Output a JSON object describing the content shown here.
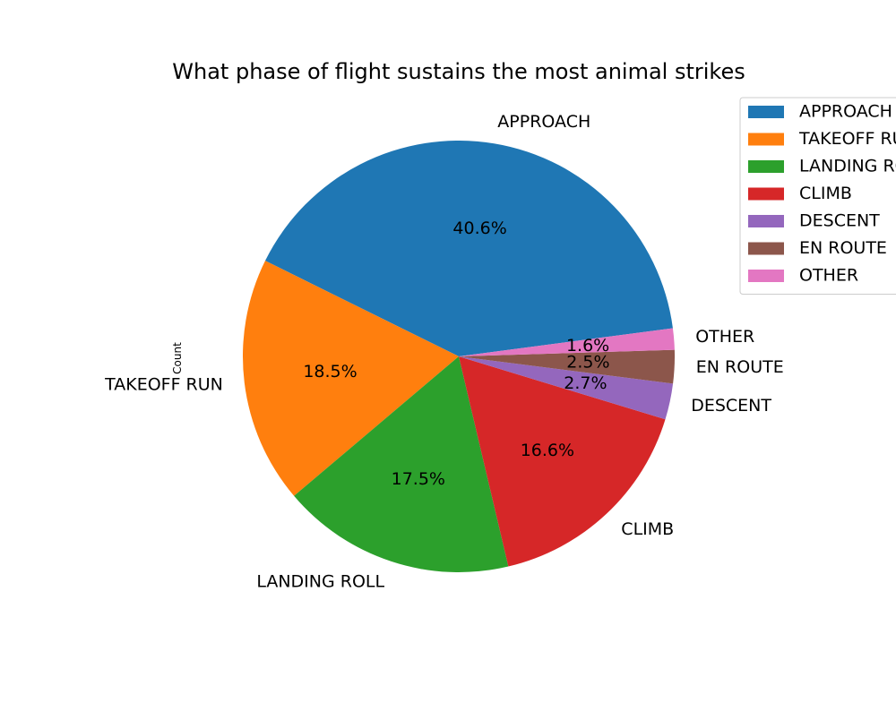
{
  "chart_data": {
    "type": "pie",
    "title": "What phase of flight sustains the most animal strikes",
    "ylabel": "Count",
    "categories": [
      "APPROACH",
      "TAKEOFF RUN",
      "LANDING ROLL",
      "CLIMB",
      "DESCENT",
      "EN ROUTE",
      "OTHER"
    ],
    "percentages": [
      40.6,
      18.5,
      17.5,
      16.6,
      2.7,
      2.5,
      1.6
    ],
    "percent_labels": [
      "40.6%",
      "18.5%",
      "17.5%",
      "16.6%",
      "2.7%",
      "2.5%",
      "1.6%"
    ],
    "colors": [
      "#1f77b4",
      "#ff7f0e",
      "#2ca02c",
      "#d62728",
      "#9467bd",
      "#8c564b",
      "#e377c2"
    ],
    "legend": {
      "placement": "upper-right",
      "entries": [
        "APPROACH",
        "TAKEOFF RUN",
        "LANDING ROLL",
        "CLIMB",
        "DESCENT",
        "EN ROUTE",
        "OTHER"
      ]
    }
  }
}
